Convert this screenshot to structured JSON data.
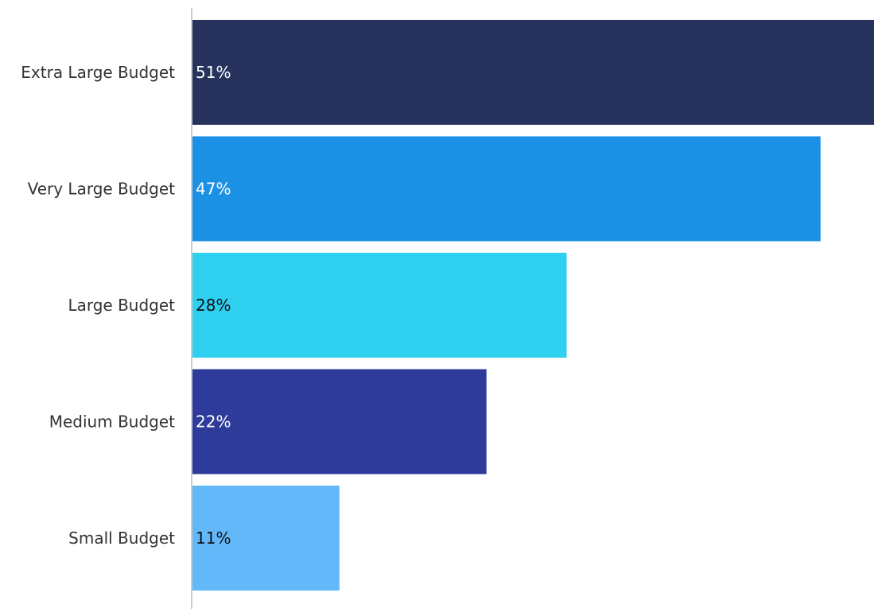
{
  "chart_data": {
    "type": "bar",
    "orientation": "horizontal",
    "categories": [
      "Extra Large Budget",
      "Very Large Budget",
      "Large Budget",
      "Medium Budget",
      "Small Budget"
    ],
    "values": [
      51,
      47,
      28,
      22,
      11
    ],
    "value_labels": [
      "51%",
      "47%",
      "28%",
      "22%",
      "11%"
    ],
    "colors": [
      "#27335c",
      "#1c90e5",
      "#2ecfef",
      "#2f3b9a",
      "#63b8fa"
    ],
    "label_colors": [
      "#ffffff",
      "#ffffff",
      "#111111",
      "#ffffff",
      "#111111"
    ],
    "unit": "%",
    "title": "",
    "xlabel": "",
    "ylabel": "",
    "xlim": [
      0,
      51
    ],
    "grid": false,
    "legend": "none"
  }
}
